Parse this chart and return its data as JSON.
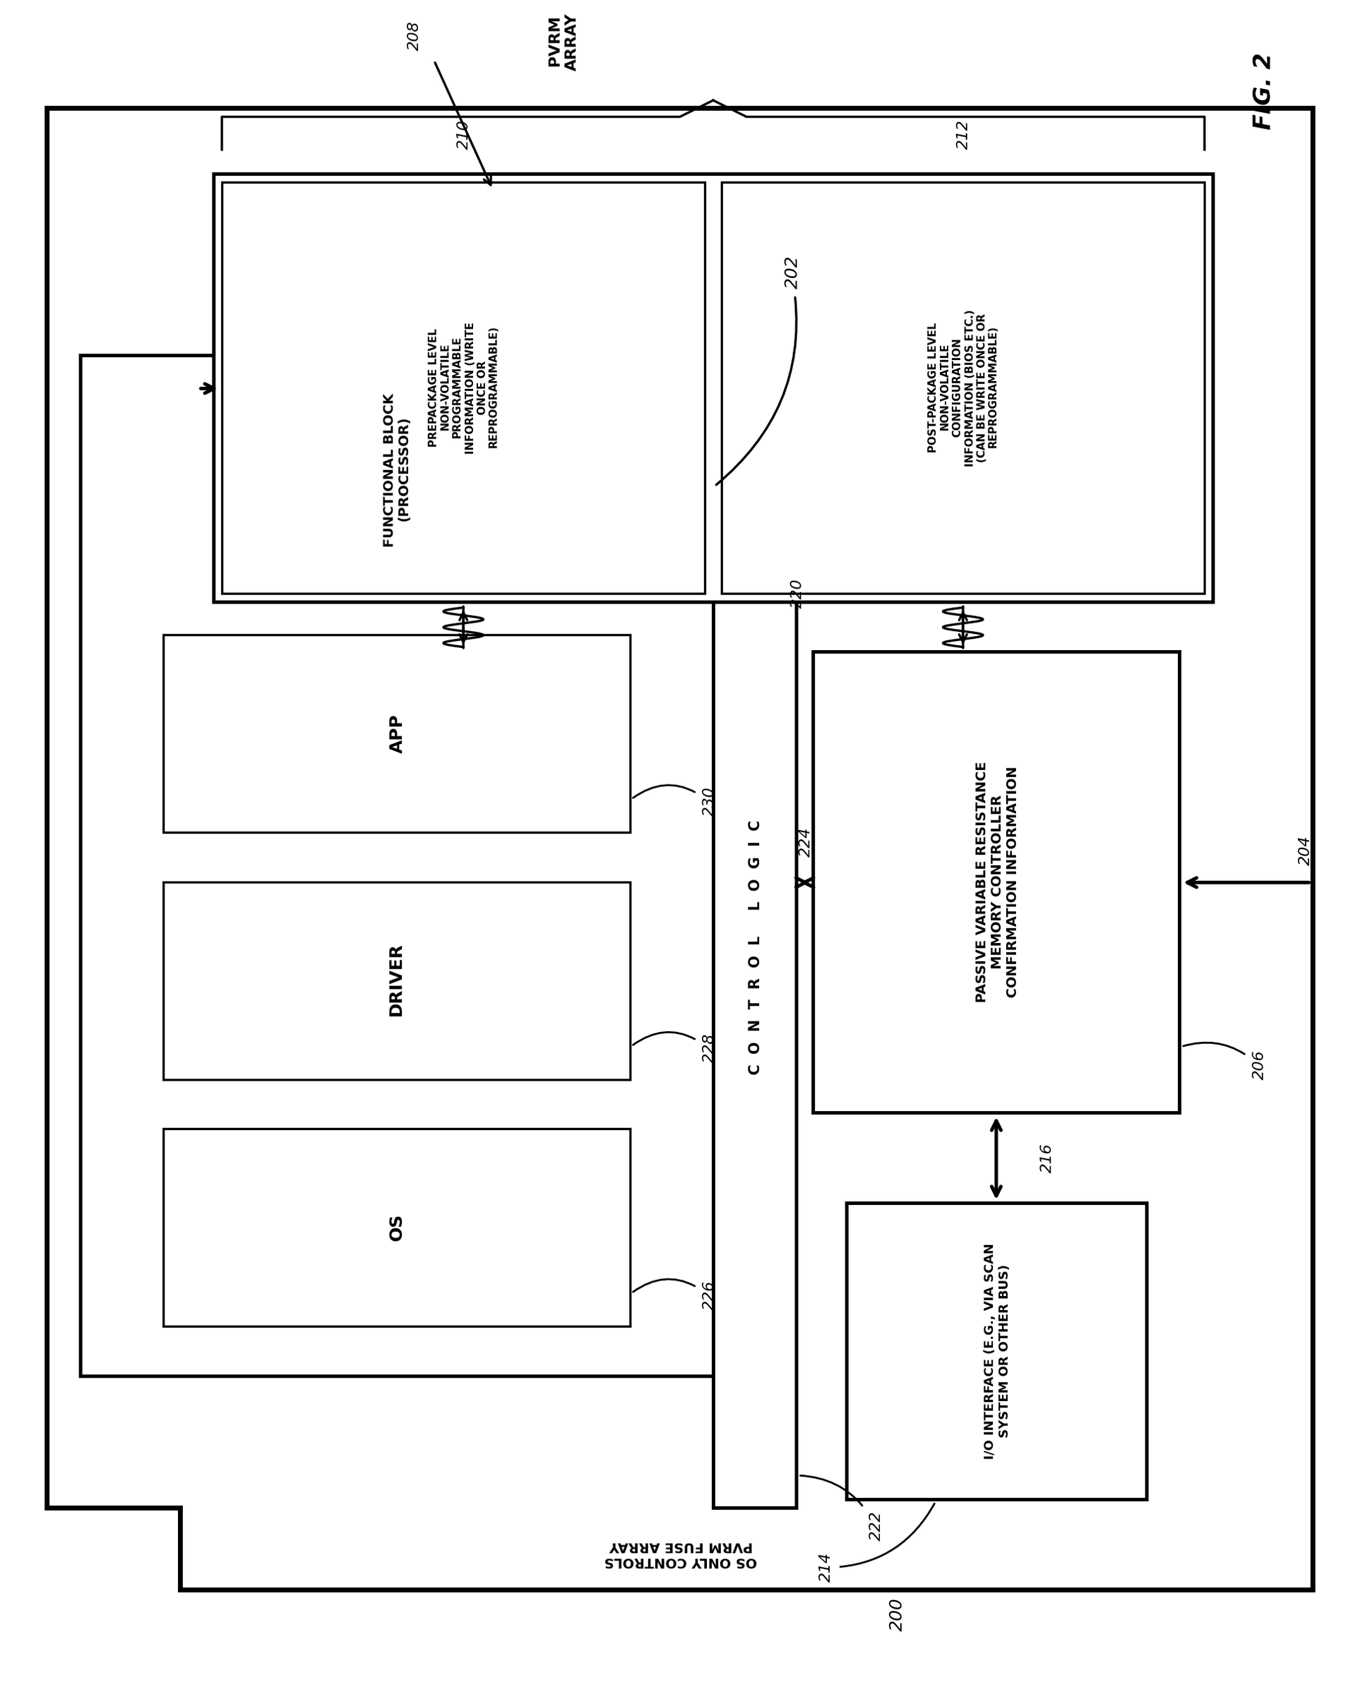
{
  "fig_label": "FIG. 2",
  "bg_color": "#ffffff",
  "label_200": "200",
  "label_202": "202",
  "label_204": "204",
  "label_206": "206",
  "label_208": "208",
  "label_210": "210",
  "label_212": "212",
  "label_214": "214",
  "label_216": "216",
  "label_220": "220",
  "label_222": "222",
  "label_224": "224",
  "label_226": "226",
  "label_228": "228",
  "label_230": "230",
  "box_os": "OS",
  "box_driver": "DRIVER",
  "box_app": "APP",
  "box_functional": "FUNCTIONAL BLOCK\n(PROCESSOR)",
  "box_control_logic": "C  O  N  T  R  O  L     L  O  G  I  C",
  "box_pvrm": "PASSIVE VARIABLE RESISTANCE\nMEMORY CONTROLLER\nCONFIRMATION INFORMATION",
  "box_io": "I/O INTERFACE (E.G., VIA SCAN\nSYSTEM OR OTHER BUS)",
  "box_prepackage": "PREPACKAGE LEVEL\nNON-VOLATILE\nPROGRAMMABLE\nINFORMATION (WRITE\nONCE OR\nREPROGRAMMABLE)",
  "box_postpackage": "POST-PACKAGE LEVEL\nNON-VOLATILE\nCONFIGURATION\nINFORMATION (BIOS ETC.)\n(CAN BE WRITE ONCE OR\nREPROGRAMMABLE)",
  "pvrm_array_label": "PVRM\nARRAY",
  "side_label_1": "OS ONLY CONTROLS",
  "side_label_2": "PVRM FUSE ARRAY"
}
